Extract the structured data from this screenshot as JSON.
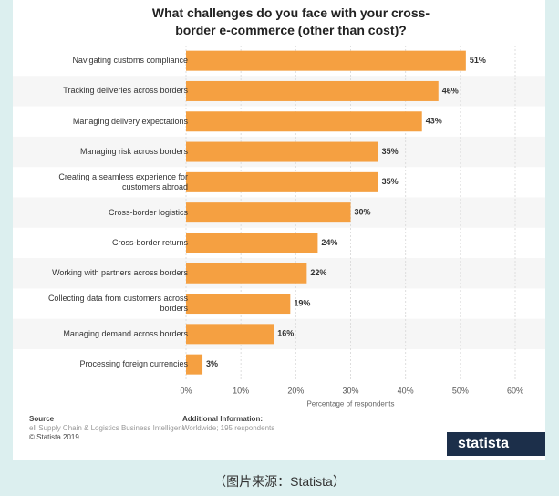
{
  "chart_data": {
    "type": "bar",
    "orientation": "horizontal",
    "title": "What challenges do you face with your cross-border e-commerce (other than cost)?",
    "categories": [
      "Navigating customs compliance",
      "Tracking deliveries across borders",
      "Managing delivery expectations",
      "Managing risk across borders",
      "Creating a seamless experience for customers abroad",
      "Cross-border logistics",
      "Cross-border returns",
      "Working with partners across borders",
      "Collecting data from customers across borders",
      "Managing demand across borders",
      "Processing foreign currencies"
    ],
    "values": [
      51,
      46,
      43,
      35,
      35,
      30,
      24,
      22,
      19,
      16,
      3
    ],
    "value_labels": [
      "51%",
      "46%",
      "43%",
      "35%",
      "35%",
      "30%",
      "24%",
      "22%",
      "19%",
      "16%",
      "3%"
    ],
    "color": "#f5a041",
    "xlim": [
      0,
      60
    ],
    "xticks": [
      {
        "value": 0,
        "label": "0%"
      },
      {
        "value": 10,
        "label": "10%"
      },
      {
        "value": 20,
        "label": "20%"
      },
      {
        "value": 30,
        "label": "30%"
      },
      {
        "value": 40,
        "label": "40%"
      },
      {
        "value": 50,
        "label": "50%"
      },
      {
        "value": 60,
        "label": "60%"
      }
    ],
    "xlabel": "Percentage of respondents",
    "grid": true,
    "source_label": "Source",
    "source": "ell Supply Chain & Logistics Business Intelligence",
    "copyright": "© Statista 2019",
    "info_label": "Additional Information:",
    "info": "Worldwide; 195 respondents",
    "brand": "statista",
    "caption": "（图片来源：Statista）"
  }
}
